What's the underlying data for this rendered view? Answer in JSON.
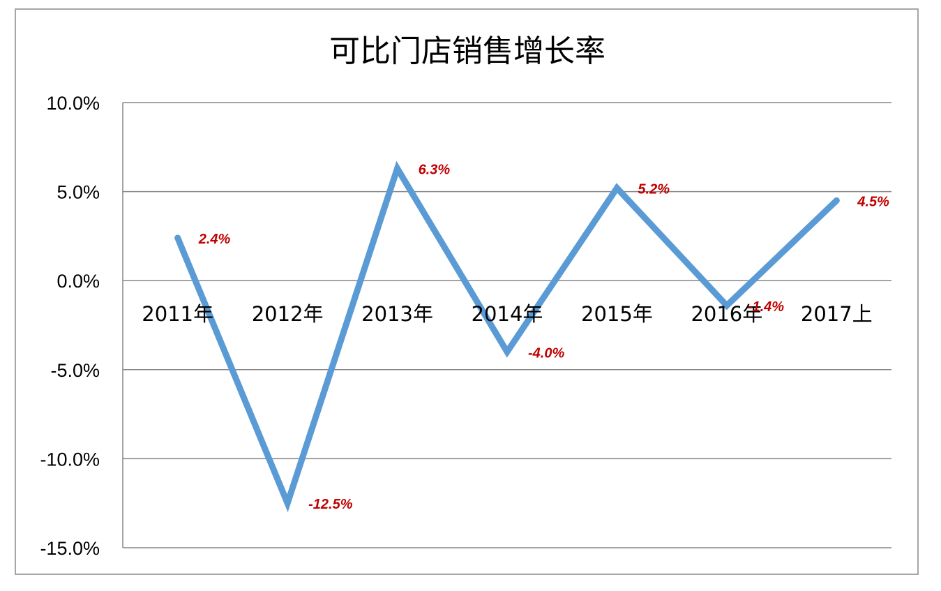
{
  "chart_data": {
    "type": "line",
    "title": "可比门店销售增长率",
    "xlabel": "",
    "ylabel": "",
    "categories": [
      "2011年",
      "2012年",
      "2013年",
      "2014年",
      "2015年",
      "2016年",
      "2017上"
    ],
    "series": [
      {
        "values": [
          2.4,
          -12.5,
          6.3,
          -4.0,
          5.2,
          -1.4,
          4.5
        ],
        "data_labels": [
          "2.4%",
          "-12.5%",
          "6.3%",
          "-4.0%",
          "5.2%",
          "-1.4%",
          "4.5%"
        ]
      }
    ],
    "ylim": [
      -15.0,
      10.0
    ],
    "yticks": [
      10.0,
      5.0,
      0.0,
      -5.0,
      -10.0,
      -15.0
    ],
    "ytick_labels": [
      "10.0%",
      "5.0%",
      "0.0%",
      "-5.0%",
      "-10.0%",
      "-15.0%"
    ],
    "grid": true,
    "legend": "none",
    "colors": {
      "line": "#5b9bd5",
      "data_label": "#c00000",
      "grid": "#868686",
      "frame": "#a6a6a6"
    }
  }
}
